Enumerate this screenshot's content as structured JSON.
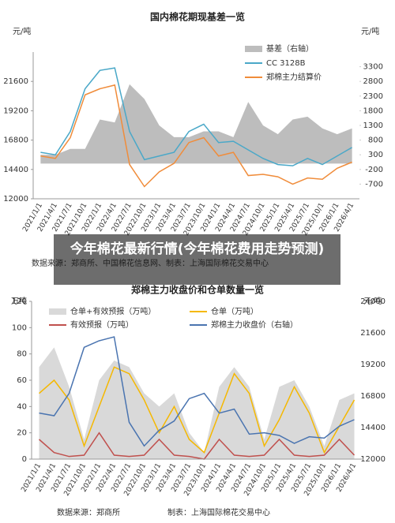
{
  "overlay_title": "今年棉花最新行情(今年棉花费用走势预测)",
  "chart_data": [
    {
      "type": "line",
      "title": "国内棉花期现基差一览",
      "y_label": "元/吨",
      "y2_label": "元/吨",
      "categories": [
        "2021/1/1",
        "2021/4/1",
        "2021/7/1",
        "2021/10/1",
        "2022/1/1",
        "2022/4/1",
        "2022/7/1",
        "2022/10/1",
        "2023/1/1",
        "2023/4/1",
        "2023/7/1",
        "2023/10/1",
        "2024/1/1",
        "2024/4/1",
        "2024/7/1",
        "2024/10/1",
        "2025/1/1",
        "2025/4/1",
        "2025/7/1",
        "2025/10/1",
        "2026/1/1",
        "2026/4/1"
      ],
      "series": [
        {
          "name": "基差（右轴）",
          "color": "#bdbdbd",
          "style": "area",
          "axis": "y2",
          "values": [
            300,
            300,
            500,
            500,
            1500,
            1400,
            2700,
            2200,
            1300,
            900,
            900,
            1100,
            1100,
            900,
            2100,
            1300,
            1000,
            1500,
            1600,
            1200,
            1000,
            1200
          ]
        },
        {
          "name": "CC 3128B",
          "color": "#4aa8c8",
          "values": [
            15800,
            15600,
            17500,
            21000,
            22500,
            22700,
            17500,
            15200,
            15500,
            15800,
            17500,
            18100,
            16600,
            16700,
            16000,
            15300,
            14800,
            14700,
            15300,
            14800,
            15500,
            16200
          ]
        },
        {
          "name": "郑棉主力结算价",
          "color": "#f08c3a",
          "values": [
            15500,
            15300,
            17000,
            20500,
            21000,
            21300,
            14800,
            13000,
            14200,
            14900,
            16600,
            17000,
            15500,
            15800,
            13900,
            14000,
            13800,
            13200,
            13700,
            13600,
            14500,
            15000
          ]
        }
      ],
      "ylim": [
        12000,
        24000
      ],
      "yticks": [
        12000,
        14400,
        16800,
        19200,
        21600
      ],
      "y2lim": [
        -1200,
        3800
      ],
      "y2ticks": [
        -700,
        -200,
        300,
        800,
        1300,
        1800,
        2300,
        2800,
        3300
      ],
      "notes": [
        "数据来源：郑商所、中国棉花信息网、制表：上海国际棉花交易中心"
      ]
    },
    {
      "type": "line",
      "title": "郑棉主力收盘价和仓单数量一览",
      "y_label": "万吨",
      "y2_label": "元/吨",
      "categories": [
        "2021/1/1",
        "2021/4/1",
        "2021/7/1",
        "2021/10/1",
        "2022/1/1",
        "2022/4/1",
        "2022/7/1",
        "2022/10/1",
        "2023/1/1",
        "2023/4/1",
        "2023/7/1",
        "2023/10/1",
        "2024/1/1",
        "2024/4/1",
        "2024/7/1",
        "2024/10/1",
        "2025/1/1",
        "2025/4/1",
        "2025/7/1",
        "2025/10/1",
        "2026/1/1",
        "2026/4/1"
      ],
      "series": [
        {
          "name": "仓单+有效预报（万吨）",
          "color": "#d9d9d9",
          "style": "area",
          "values": [
            70,
            85,
            55,
            15,
            60,
            75,
            70,
            50,
            40,
            50,
            20,
            5,
            55,
            70,
            55,
            15,
            55,
            60,
            40,
            10,
            45,
            50
          ]
        },
        {
          "name": "仓单（万吨）",
          "color": "#f5b800",
          "values": [
            50,
            60,
            45,
            10,
            40,
            70,
            65,
            45,
            20,
            40,
            15,
            5,
            35,
            65,
            50,
            10,
            30,
            55,
            35,
            5,
            25,
            45
          ]
        },
        {
          "name": "有效预报（万吨）",
          "color": "#c0504d",
          "values": [
            15,
            5,
            2,
            3,
            20,
            3,
            2,
            3,
            15,
            3,
            2,
            0,
            15,
            3,
            2,
            3,
            15,
            3,
            2,
            3,
            15,
            3
          ]
        },
        {
          "name": "郑棉主力收盘价（右轴）",
          "color": "#4a74b0",
          "axis": "y2",
          "values": [
            15500,
            15300,
            17000,
            20500,
            21000,
            21300,
            14800,
            13000,
            14200,
            14900,
            16600,
            17000,
            15500,
            15800,
            13900,
            14000,
            13800,
            13200,
            13700,
            13600,
            14500,
            15000
          ]
        }
      ],
      "ylim": [
        0,
        120
      ],
      "yticks": [
        0,
        20,
        40,
        60,
        80,
        100,
        120
      ],
      "y2lim": [
        12000,
        24000
      ],
      "y2ticks": [
        12000,
        14400,
        16800,
        19200,
        21600,
        24000
      ],
      "notes": [
        "数据来源：郑商所",
        "制表：上海国际棉花交易中心"
      ]
    }
  ]
}
